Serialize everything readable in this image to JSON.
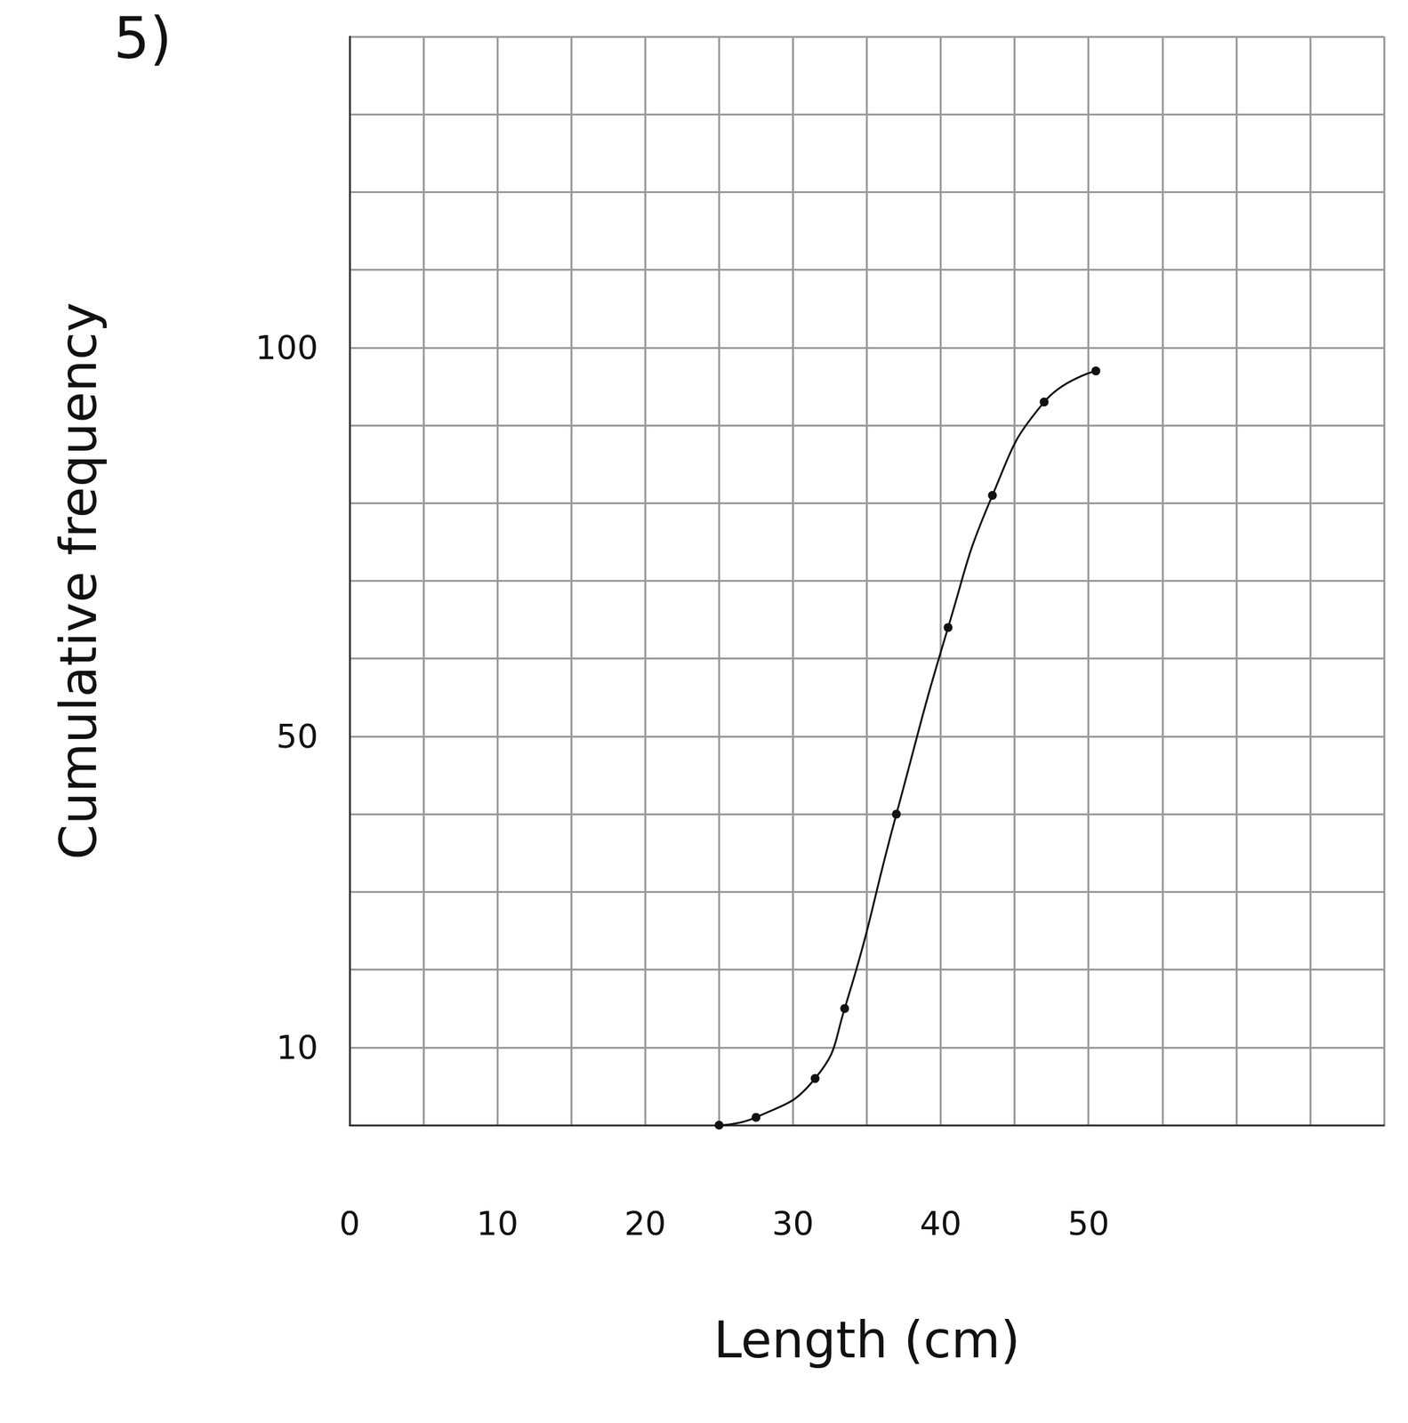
{
  "chart_data": {
    "type": "line",
    "title": "5)",
    "x_label": "Length (cm)",
    "y_label": "Cumulative frequency",
    "x": [
      25,
      27.5,
      31.5,
      33.5,
      37,
      40.5,
      43.5,
      47,
      50.5
    ],
    "series": [
      {
        "name": "Cumulative frequency",
        "color": "#111111",
        "values": [
          0,
          1,
          6,
          15,
          40,
          64,
          81,
          93,
          97
        ],
        "marker": "circle",
        "line_style": "solid"
      }
    ],
    "xlim": [
      0,
      70
    ],
    "xticks": [
      0,
      10,
      20,
      30,
      40,
      50
    ],
    "ylim": [
      0,
      140
    ],
    "yticks": [
      10,
      50,
      100
    ],
    "grid": true
  }
}
